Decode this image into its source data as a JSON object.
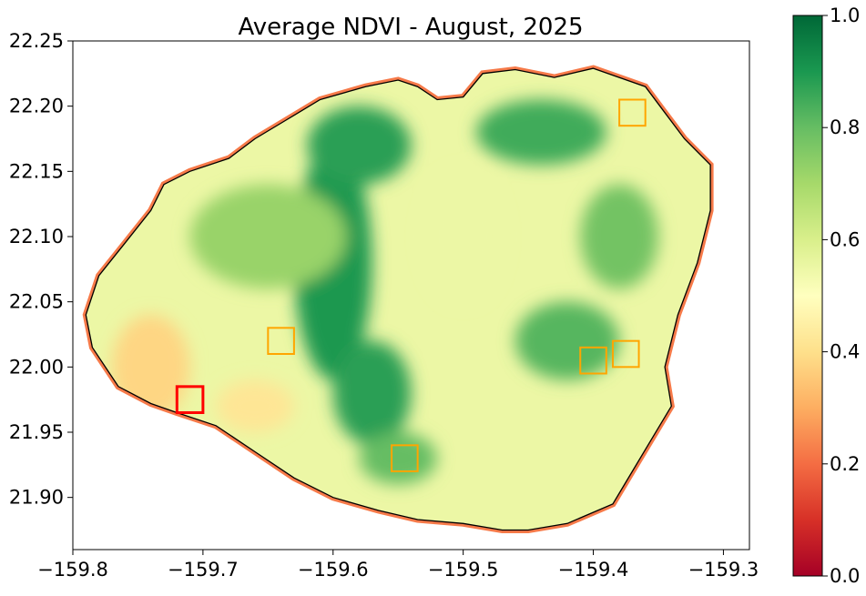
{
  "title": "Average NDVI - August, 2025",
  "map": {
    "xlim": [
      -159.8,
      -159.28
    ],
    "ylim": [
      21.86,
      22.25
    ],
    "x_ticks": [
      {
        "value": -159.8,
        "label": "−159.8"
      },
      {
        "value": -159.7,
        "label": "−159.7"
      },
      {
        "value": -159.6,
        "label": "−159.6"
      },
      {
        "value": -159.5,
        "label": "−159.5"
      },
      {
        "value": -159.4,
        "label": "−159.4"
      },
      {
        "value": -159.3,
        "label": "−159.3"
      }
    ],
    "y_ticks": [
      {
        "value": 22.25,
        "label": "22.25"
      },
      {
        "value": 22.2,
        "label": "22.20"
      },
      {
        "value": 22.15,
        "label": "22.15"
      },
      {
        "value": 22.1,
        "label": "22.10"
      },
      {
        "value": 22.05,
        "label": "22.05"
      },
      {
        "value": 22.0,
        "label": "22.00"
      },
      {
        "value": 21.95,
        "label": "21.95"
      },
      {
        "value": 21.9,
        "label": "21.90"
      }
    ],
    "island_outline": [
      [
        -159.4,
        22.229
      ],
      [
        -159.36,
        22.215
      ],
      [
        -159.345,
        22.195
      ],
      [
        -159.33,
        22.175
      ],
      [
        -159.31,
        22.155
      ],
      [
        -159.31,
        22.12
      ],
      [
        -159.32,
        22.08
      ],
      [
        -159.335,
        22.04
      ],
      [
        -159.345,
        22.0
      ],
      [
        -159.34,
        21.97
      ],
      [
        -159.355,
        21.945
      ],
      [
        -159.37,
        21.92
      ],
      [
        -159.385,
        21.895
      ],
      [
        -159.42,
        21.88
      ],
      [
        -159.45,
        21.875
      ],
      [
        -159.47,
        21.875
      ],
      [
        -159.5,
        21.88
      ],
      [
        -159.535,
        21.883
      ],
      [
        -159.565,
        21.89
      ],
      [
        -159.6,
        21.9
      ],
      [
        -159.63,
        21.915
      ],
      [
        -159.66,
        21.935
      ],
      [
        -159.69,
        21.955
      ],
      [
        -159.72,
        21.965
      ],
      [
        -159.74,
        21.972
      ],
      [
        -159.765,
        21.985
      ],
      [
        -159.785,
        22.015
      ],
      [
        -159.79,
        22.04
      ],
      [
        -159.78,
        22.07
      ],
      [
        -159.76,
        22.095
      ],
      [
        -159.74,
        22.12
      ],
      [
        -159.73,
        22.14
      ],
      [
        -159.71,
        22.15
      ],
      [
        -159.68,
        22.16
      ],
      [
        -159.66,
        22.175
      ],
      [
        -159.635,
        22.19
      ],
      [
        -159.61,
        22.205
      ],
      [
        -159.575,
        22.215
      ],
      [
        -159.55,
        22.22
      ],
      [
        -159.535,
        22.215
      ],
      [
        -159.52,
        22.205
      ],
      [
        -159.5,
        22.207
      ],
      [
        -159.485,
        22.225
      ],
      [
        -159.46,
        22.228
      ],
      [
        -159.43,
        22.222
      ]
    ],
    "vegetation_patches": [
      {
        "lon": -159.6,
        "lat": 22.08,
        "rx": 0.03,
        "ry": 0.09,
        "ndvi": 0.9
      },
      {
        "lon": -159.58,
        "lat": 22.17,
        "rx": 0.04,
        "ry": 0.03,
        "ndvi": 0.88
      },
      {
        "lon": -159.44,
        "lat": 22.18,
        "rx": 0.05,
        "ry": 0.025,
        "ndvi": 0.85
      },
      {
        "lon": -159.57,
        "lat": 21.98,
        "rx": 0.03,
        "ry": 0.04,
        "ndvi": 0.88
      },
      {
        "lon": -159.42,
        "lat": 22.02,
        "rx": 0.04,
        "ry": 0.03,
        "ndvi": 0.82
      },
      {
        "lon": -159.65,
        "lat": 22.1,
        "rx": 0.06,
        "ry": 0.04,
        "ndvi": 0.72
      },
      {
        "lon": -159.38,
        "lat": 22.1,
        "rx": 0.03,
        "ry": 0.04,
        "ndvi": 0.78
      },
      {
        "lon": -159.5,
        "lat": 22.1,
        "rx": 0.03,
        "ry": 0.05,
        "ndvi": 0.55
      },
      {
        "lon": -159.55,
        "lat": 21.93,
        "rx": 0.03,
        "ry": 0.02,
        "ndvi": 0.8
      },
      {
        "lon": -159.74,
        "lat": 22.0,
        "rx": 0.03,
        "ry": 0.04,
        "ndvi": 0.38
      },
      {
        "lon": -159.66,
        "lat": 21.97,
        "rx": 0.03,
        "ry": 0.02,
        "ndvi": 0.42
      }
    ],
    "sample_boxes": [
      {
        "lon": [
          -159.72,
          -159.7
        ],
        "lat": [
          21.965,
          21.985
        ],
        "color": "#ff0000"
      },
      {
        "lon": [
          -159.65,
          -159.63
        ],
        "lat": [
          22.01,
          22.03
        ],
        "color": "#ffa500"
      },
      {
        "lon": [
          -159.555,
          -159.535
        ],
        "lat": [
          21.92,
          21.94
        ],
        "color": "#ffa500"
      },
      {
        "lon": [
          -159.41,
          -159.39
        ],
        "lat": [
          21.995,
          22.015
        ],
        "color": "#ffa500"
      },
      {
        "lon": [
          -159.385,
          -159.365
        ],
        "lat": [
          22.0,
          22.02
        ],
        "color": "#ffa500"
      },
      {
        "lon": [
          -159.38,
          -159.36
        ],
        "lat": [
          22.185,
          22.205
        ],
        "color": "#ffa500"
      }
    ]
  },
  "colorbar": {
    "vmin": 0.0,
    "vmax": 1.0,
    "cmap": "RdYlGn",
    "stops": [
      "#a50026",
      "#d73027",
      "#f46d43",
      "#fdae61",
      "#fee08b",
      "#ffffbf",
      "#d9ef8b",
      "#a6d96a",
      "#66bd63",
      "#1a9850",
      "#006837"
    ],
    "ticks": [
      {
        "value": 0.0,
        "label": "0.0"
      },
      {
        "value": 0.2,
        "label": "0.2"
      },
      {
        "value": 0.4,
        "label": "0.4"
      },
      {
        "value": 0.6,
        "label": "0.6"
      },
      {
        "value": 0.8,
        "label": "0.8"
      },
      {
        "value": 1.0,
        "label": "1.0"
      }
    ]
  }
}
